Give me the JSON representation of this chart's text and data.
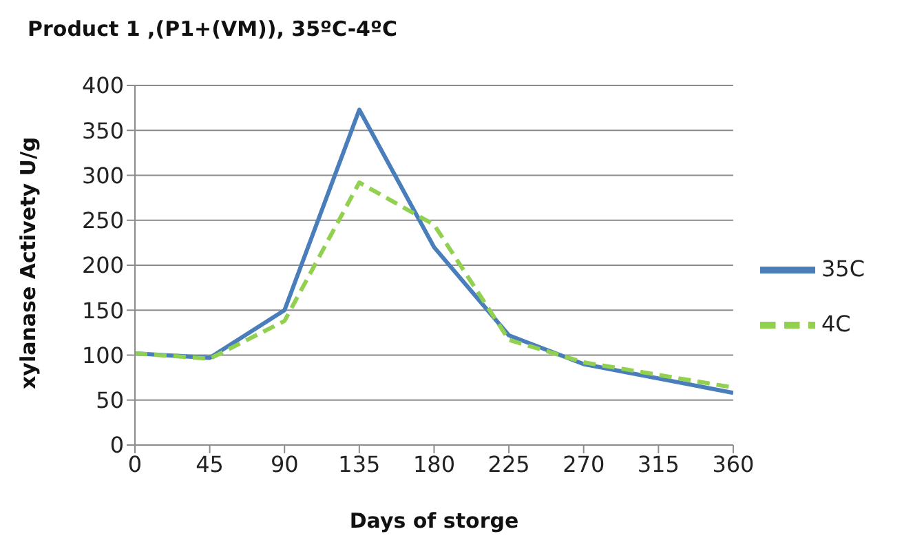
{
  "chart_data": {
    "type": "line",
    "title": "Product 1 ,(P1+(VM)), 35ºC-4ºC",
    "xlabel": "Days of storge",
    "ylabel": "xylanase Activety U/g",
    "x": [
      0,
      45,
      90,
      135,
      180,
      225,
      270,
      360
    ],
    "series": [
      {
        "name": "35C",
        "color": "#4a7ebb",
        "line_style": "solid",
        "values": [
          102,
          97,
          150,
          373,
          220,
          122,
          90,
          58
        ]
      },
      {
        "name": "4C",
        "color": "#92d050",
        "line_style": "dashed",
        "values": [
          102,
          96,
          138,
          292,
          245,
          117,
          92,
          64
        ]
      }
    ],
    "xlim": [
      0,
      360
    ],
    "xticks": [
      0,
      45,
      90,
      135,
      180,
      225,
      270,
      315,
      360
    ],
    "ylim": [
      0,
      400
    ],
    "yticks": [
      0,
      50,
      100,
      150,
      200,
      250,
      300,
      350,
      400
    ],
    "grid": "y",
    "legend": "right",
    "marker": "none"
  }
}
